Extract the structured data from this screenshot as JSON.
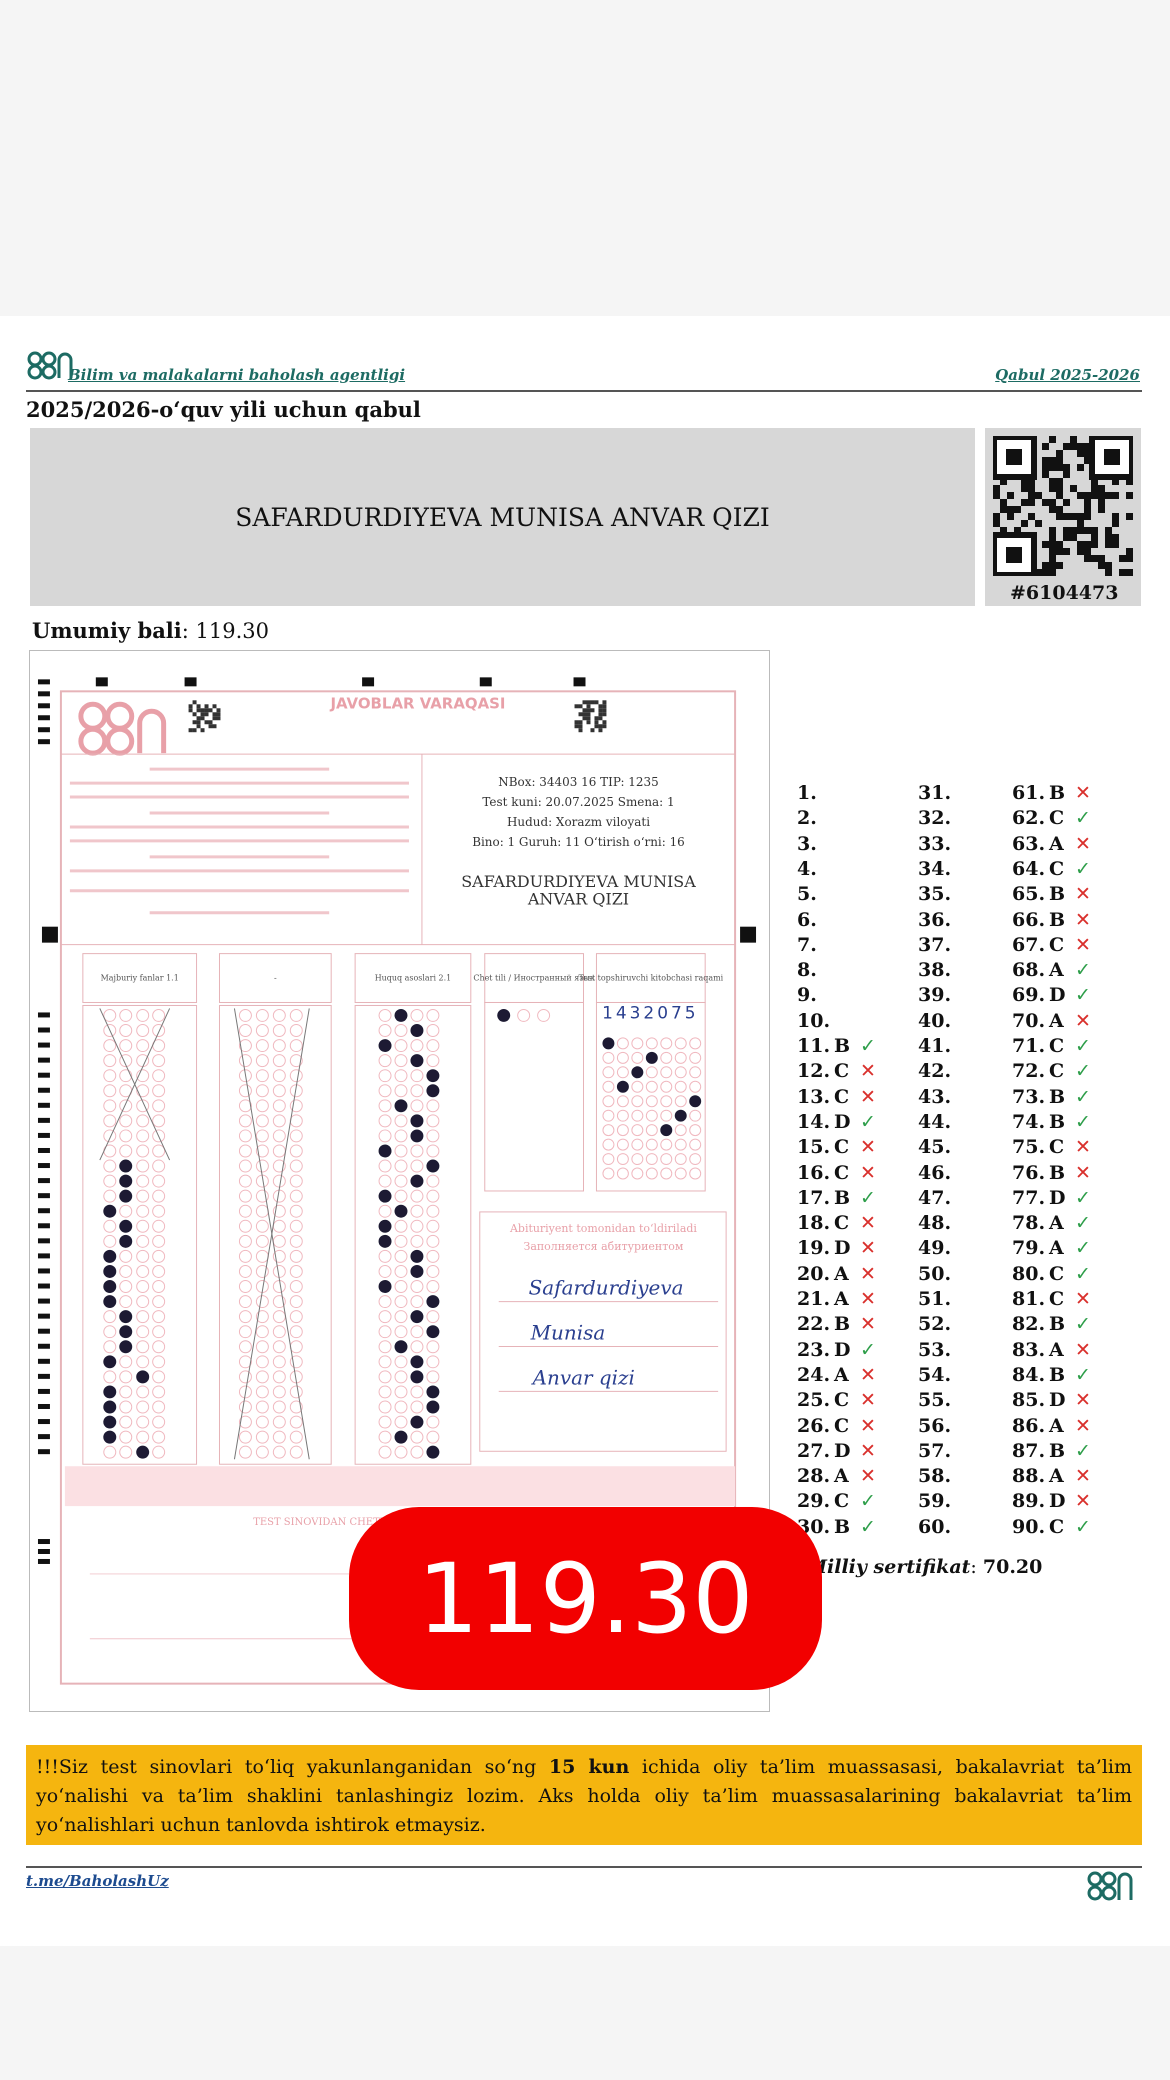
{
  "header": {
    "agency": "Bilim va malakalarni baholash agentligi",
    "right": "Qabul 2025-2026",
    "subtitle": "2025/2026-o‘quv yili uchun qabul"
  },
  "candidate": {
    "name": "SAFARDURDIYEVA MUNISA ANVAR QIZI",
    "id": "#6104473",
    "score_label": "Umumiy bali",
    "score": "119.30"
  },
  "sheet": {
    "title": "JAVOBLAR VARAQASI",
    "info": [
      "NBox: 34403    16    TIP: 1235",
      "Test kuni: 20.07.2025    Smena: 1",
      "Hudud: Xorazm viloyati",
      "Bino: 1   Guruh: 11   O‘tirish o‘rni: 16"
    ],
    "name_lines": [
      "SAFARDURDIYEVA MUNISA",
      "ANVAR QIZI"
    ],
    "columns": [
      "Majburiy fanlar 1.1",
      "-",
      "Huquq asoslari 2.1",
      "Chet tili / Иностранный язык",
      "Test topshiruvchi kitobchasi raqami"
    ],
    "code": "1432075",
    "fill_title": "Abituriyent tomonidan to‘ldiriladi",
    "fill_subtitle": "Заполняется абитуриентом",
    "signatures": [
      "Safardurdiyeva",
      "Munisa",
      "Anvar qizi"
    ],
    "section": "TEST SINOVIDAN CHETLASHTIRISH DALOLATNOMASI"
  },
  "answers": [
    {
      "num": "1."
    },
    {
      "num": "2."
    },
    {
      "num": "3."
    },
    {
      "num": "4."
    },
    {
      "num": "5."
    },
    {
      "num": "6."
    },
    {
      "num": "7."
    },
    {
      "num": "8."
    },
    {
      "num": "9."
    },
    {
      "num": "10."
    },
    {
      "num": "11.",
      "answer": "B",
      "mark": "✓",
      "color": "#2e9e4a"
    },
    {
      "num": "12.",
      "answer": "C",
      "mark": "✕",
      "color": "#d9302c"
    },
    {
      "num": "13.",
      "answer": "C",
      "mark": "✕",
      "color": "#d9302c"
    },
    {
      "num": "14.",
      "answer": "D",
      "mark": "✓",
      "color": "#2e9e4a"
    },
    {
      "num": "15.",
      "answer": "C",
      "mark": "✕",
      "color": "#d9302c"
    },
    {
      "num": "16.",
      "answer": "C",
      "mark": "✕",
      "color": "#d9302c"
    },
    {
      "num": "17.",
      "answer": "B",
      "mark": "✓",
      "color": "#2e9e4a"
    },
    {
      "num": "18.",
      "answer": "C",
      "mark": "✕",
      "color": "#d9302c"
    },
    {
      "num": "19.",
      "answer": "D",
      "mark": "✕",
      "color": "#d9302c"
    },
    {
      "num": "20.",
      "answer": "A",
      "mark": "✕",
      "color": "#d9302c"
    },
    {
      "num": "21.",
      "answer": "A",
      "mark": "✕",
      "color": "#d9302c"
    },
    {
      "num": "22.",
      "answer": "B",
      "mark": "✕",
      "color": "#d9302c"
    },
    {
      "num": "23.",
      "answer": "D",
      "mark": "✓",
      "color": "#2e9e4a"
    },
    {
      "num": "24.",
      "answer": "A",
      "mark": "✕",
      "color": "#d9302c"
    },
    {
      "num": "25.",
      "answer": "C",
      "mark": "✕",
      "color": "#d9302c"
    },
    {
      "num": "26.",
      "answer": "C",
      "mark": "✕",
      "color": "#d9302c"
    },
    {
      "num": "27.",
      "answer": "D",
      "mark": "✕",
      "color": "#d9302c"
    },
    {
      "num": "28.",
      "answer": "A",
      "mark": "✕",
      "color": "#d9302c"
    },
    {
      "num": "29.",
      "answer": "C",
      "mark": "✓",
      "color": "#2e9e4a"
    },
    {
      "num": "30.",
      "answer": "B",
      "mark": "✓",
      "color": "#2e9e4a"
    },
    {
      "num": "31."
    },
    {
      "num": "32."
    },
    {
      "num": "33."
    },
    {
      "num": "34."
    },
    {
      "num": "35."
    },
    {
      "num": "36."
    },
    {
      "num": "37."
    },
    {
      "num": "38."
    },
    {
      "num": "39."
    },
    {
      "num": "40."
    },
    {
      "num": "41."
    },
    {
      "num": "42."
    },
    {
      "num": "43."
    },
    {
      "num": "44."
    },
    {
      "num": "45."
    },
    {
      "num": "46."
    },
    {
      "num": "47."
    },
    {
      "num": "48."
    },
    {
      "num": "49."
    },
    {
      "num": "50."
    },
    {
      "num": "51."
    },
    {
      "num": "52."
    },
    {
      "num": "53."
    },
    {
      "num": "54."
    },
    {
      "num": "55."
    },
    {
      "num": "56."
    },
    {
      "num": "57."
    },
    {
      "num": "58."
    },
    {
      "num": "59."
    },
    {
      "num": "60."
    },
    {
      "num": "61.",
      "answer": "B",
      "mark": "✕",
      "color": "#d9302c"
    },
    {
      "num": "62.",
      "answer": "C",
      "mark": "✓",
      "color": "#2e9e4a"
    },
    {
      "num": "63.",
      "answer": "A",
      "mark": "✕",
      "color": "#d9302c"
    },
    {
      "num": "64.",
      "answer": "C",
      "mark": "✓",
      "color": "#2e9e4a"
    },
    {
      "num": "65.",
      "answer": "B",
      "mark": "✕",
      "color": "#d9302c"
    },
    {
      "num": "66.",
      "answer": "B",
      "mark": "✕",
      "color": "#d9302c"
    },
    {
      "num": "67.",
      "answer": "C",
      "mark": "✕",
      "color": "#d9302c"
    },
    {
      "num": "68.",
      "answer": "A",
      "mark": "✓",
      "color": "#2e9e4a"
    },
    {
      "num": "69.",
      "answer": "D",
      "mark": "✓",
      "color": "#2e9e4a"
    },
    {
      "num": "70.",
      "answer": "A",
      "mark": "✕",
      "color": "#d9302c"
    },
    {
      "num": "71.",
      "answer": "C",
      "mark": "✓",
      "color": "#2e9e4a"
    },
    {
      "num": "72.",
      "answer": "C",
      "mark": "✓",
      "color": "#2e9e4a"
    },
    {
      "num": "73.",
      "answer": "B",
      "mark": "✓",
      "color": "#2e9e4a"
    },
    {
      "num": "74.",
      "answer": "B",
      "mark": "✓",
      "color": "#2e9e4a"
    },
    {
      "num": "75.",
      "answer": "C",
      "mark": "✕",
      "color": "#d9302c"
    },
    {
      "num": "76.",
      "answer": "B",
      "mark": "✕",
      "color": "#d9302c"
    },
    {
      "num": "77.",
      "answer": "D",
      "mark": "✓",
      "color": "#2e9e4a"
    },
    {
      "num": "78.",
      "answer": "A",
      "mark": "✓",
      "color": "#2e9e4a"
    },
    {
      "num": "79.",
      "answer": "A",
      "mark": "✓",
      "color": "#2e9e4a"
    },
    {
      "num": "80.",
      "answer": "C",
      "mark": "✓",
      "color": "#2e9e4a"
    },
    {
      "num": "81.",
      "answer": "C",
      "mark": "✕",
      "color": "#d9302c"
    },
    {
      "num": "82.",
      "answer": "B",
      "mark": "✓",
      "color": "#2e9e4a"
    },
    {
      "num": "83.",
      "answer": "A",
      "mark": "✕",
      "color": "#d9302c"
    },
    {
      "num": "84.",
      "answer": "B",
      "mark": "✓",
      "color": "#2e9e4a"
    },
    {
      "num": "85.",
      "answer": "D",
      "mark": "✕",
      "color": "#d9302c"
    },
    {
      "num": "86.",
      "answer": "A",
      "mark": "✕",
      "color": "#d9302c"
    },
    {
      "num": "87.",
      "answer": "B",
      "mark": "✓",
      "color": "#2e9e4a"
    },
    {
      "num": "88.",
      "answer": "A",
      "mark": "✕",
      "color": "#d9302c"
    },
    {
      "num": "89.",
      "answer": "D",
      "mark": "✕",
      "color": "#d9302c"
    },
    {
      "num": "90.",
      "answer": "C",
      "mark": "✓",
      "color": "#2e9e4a"
    }
  ],
  "certificate": {
    "label": "Milliy sertifikat",
    "value": "70.20"
  },
  "badge": "119.30",
  "notice": {
    "before": "!!!Siz test sinovlari to‘liq yakunlanganidan so‘ng ",
    "bold": "15 kun",
    "after": " ichida oliy ta’lim muassasasi, bakalavriat ta’lim yo‘nalishi va ta’lim shaklini tanlashingiz lozim. Aks holda oliy ta’lim muassasalarining bakalavriat ta’lim yo‘nalishlari uchun tanlovda ishtirok etmaysiz."
  },
  "footer": {
    "link": "t.me/BaholashUz"
  }
}
